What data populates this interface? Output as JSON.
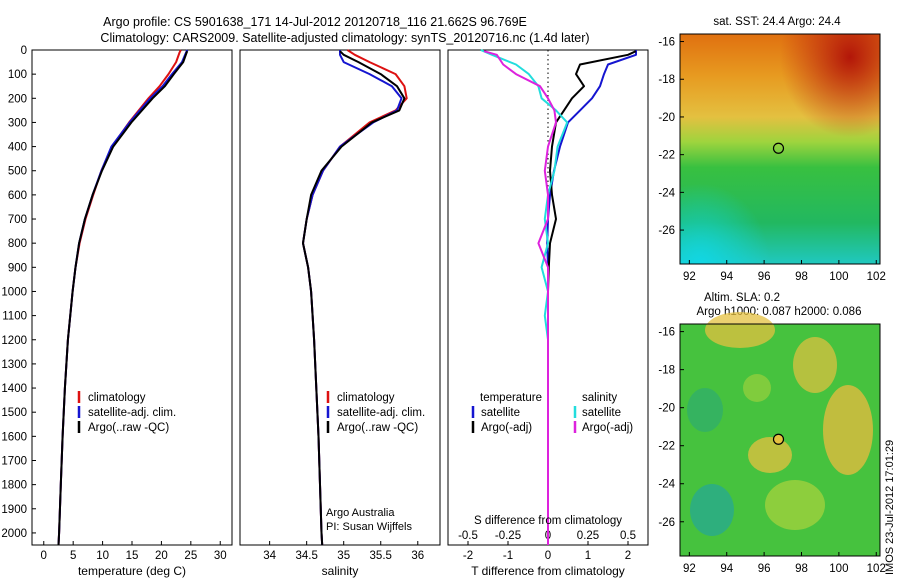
{
  "header": {
    "line1": "Argo profile: CS 5901638_171 14-Jul-2012 20120718_116 21.662S 96.769E",
    "line2": "Climatology: CARS2009. Satellite-adjusted climatology: synTS_20120716.nc (1.4d later)"
  },
  "timestamp": "IMOS 23-Jul-2012 17:01:29",
  "credit": {
    "line1": "Argo Australia",
    "line2": "PI: Susan Wijffels"
  },
  "colors": {
    "climatology": "#dd1111",
    "satellite": "#1515d0",
    "argo": "#000000",
    "sal_satellite": "#22dddd",
    "sal_argo": "#dd22dd"
  },
  "chart_data": [
    {
      "type": "line",
      "xlabel": "temperature (deg C)",
      "ylim": [
        2050,
        0
      ],
      "xlim": [
        -2,
        32
      ],
      "yticks": [
        0,
        100,
        200,
        300,
        400,
        500,
        600,
        700,
        800,
        900,
        1000,
        1100,
        1200,
        1300,
        1400,
        1500,
        1600,
        1700,
        1800,
        1900,
        2000
      ],
      "xticks": [
        0,
        5,
        10,
        15,
        20,
        25,
        30
      ],
      "legend": [
        "climatology",
        "satellite-adj. clim.",
        "Argo(..raw -QC)"
      ],
      "series": [
        {
          "name": "climatology",
          "color": "red",
          "depth": [
            0,
            10,
            50,
            100,
            150,
            200,
            300,
            400,
            500,
            600,
            700,
            800,
            900,
            1000,
            1200,
            1400,
            1600,
            1800,
            2000,
            2050
          ],
          "values": [
            23.3,
            23.1,
            22.5,
            21.2,
            19.7,
            17.8,
            14.5,
            11.6,
            9.8,
            8.4,
            7.1,
            6.1,
            5.4,
            4.9,
            4.1,
            3.6,
            3.2,
            2.9,
            2.6,
            2.5
          ]
        },
        {
          "name": "satellite-adj. clim.",
          "color": "blue",
          "depth": [
            0,
            10,
            50,
            100,
            150,
            200,
            300,
            400,
            500,
            600,
            700,
            800,
            900,
            1000,
            1200,
            1400,
            1600,
            1800,
            2000,
            2050
          ],
          "values": [
            24.4,
            24.2,
            23.5,
            21.8,
            20.2,
            18.1,
            14.6,
            11.5,
            9.8,
            8.3,
            7.0,
            6.0,
            5.4,
            4.9,
            4.1,
            3.6,
            3.2,
            2.9,
            2.6,
            2.5
          ]
        },
        {
          "name": "Argo(..raw -QC)",
          "color": "black",
          "depth": [
            5,
            10,
            50,
            100,
            150,
            200,
            300,
            400,
            500,
            600,
            700,
            800,
            900,
            1000,
            1200,
            1400,
            1600,
            1800,
            2000,
            2050
          ],
          "values": [
            24.4,
            24.3,
            23.7,
            22.1,
            20.6,
            18.5,
            14.9,
            11.8,
            9.9,
            8.3,
            7.0,
            6.0,
            5.4,
            4.9,
            4.1,
            3.6,
            3.2,
            2.9,
            2.6,
            2.5
          ]
        }
      ]
    },
    {
      "type": "line",
      "xlabel": "salinity",
      "ylim": [
        2050,
        0
      ],
      "xlim": [
        33.6,
        36.3
      ],
      "xticks": [
        34,
        34.5,
        35,
        35.5,
        36
      ],
      "legend": [
        "climatology",
        "satellite-adj. clim.",
        "Argo(..raw -QC)"
      ],
      "series": [
        {
          "name": "climatology",
          "color": "red",
          "depth": [
            0,
            20,
            50,
            100,
            150,
            200,
            250,
            300,
            400,
            500,
            600,
            700,
            800,
            900,
            1000,
            1200,
            1400,
            1600,
            1800,
            2000,
            2050
          ],
          "values": [
            35.05,
            35.15,
            35.35,
            35.7,
            35.82,
            35.85,
            35.7,
            35.35,
            34.95,
            34.72,
            34.58,
            34.5,
            34.45,
            34.52,
            34.56,
            34.6,
            34.63,
            34.66,
            34.68,
            34.7,
            34.71
          ]
        },
        {
          "name": "satellite-adj. clim.",
          "color": "blue",
          "depth": [
            0,
            20,
            50,
            100,
            150,
            200,
            250,
            300,
            400,
            500,
            600,
            700,
            800,
            900,
            1000,
            1200,
            1400,
            1600,
            1800,
            2000,
            2050
          ],
          "values": [
            34.95,
            34.95,
            35.0,
            35.35,
            35.65,
            35.78,
            35.72,
            35.4,
            34.95,
            34.72,
            34.58,
            34.5,
            34.45,
            34.52,
            34.56,
            34.6,
            34.63,
            34.66,
            34.68,
            34.7,
            34.71
          ]
        },
        {
          "name": "Argo(..raw -QC)",
          "color": "black",
          "depth": [
            5,
            20,
            50,
            100,
            150,
            200,
            250,
            300,
            400,
            500,
            600,
            700,
            800,
            900,
            1000,
            1200,
            1400,
            1600,
            1800,
            2000,
            2050
          ],
          "values": [
            34.95,
            35.0,
            35.2,
            35.5,
            35.72,
            35.82,
            35.75,
            35.38,
            34.97,
            34.7,
            34.56,
            34.5,
            34.45,
            34.52,
            34.56,
            34.6,
            34.63,
            34.66,
            34.68,
            34.7,
            34.71
          ]
        }
      ]
    },
    {
      "type": "line",
      "xlabel": "T difference from climatology",
      "x2label": "S difference from climatology",
      "ylim": [
        2050,
        0
      ],
      "xlim": [
        -2.5,
        2.5
      ],
      "xticks": [
        -2,
        -1,
        0,
        1,
        2
      ],
      "x2ticks": [
        "-0.5",
        "-0.25",
        "0",
        "0.25",
        "0.5"
      ],
      "legend_temperature": {
        "title": "temperature",
        "items": [
          "satellite",
          "Argo(-adj)"
        ]
      },
      "legend_salinity": {
        "title": "salinity",
        "items": [
          "satellite",
          "Argo(-adj)"
        ]
      },
      "series": [
        {
          "name": "temperature satellite",
          "color": "blue",
          "depth": [
            0,
            20,
            60,
            100,
            150,
            200,
            250,
            300,
            350,
            400,
            500,
            600,
            700,
            800,
            900,
            1000,
            1200,
            1400,
            1600,
            1800,
            2000,
            2050
          ],
          "values": [
            2.2,
            2.2,
            1.5,
            1.4,
            1.3,
            1.1,
            0.8,
            0.5,
            0.4,
            0.3,
            0.15,
            0.05,
            0.0,
            -0.02,
            0.0,
            0.0,
            0.0,
            0.0,
            0.0,
            0.0,
            0.0,
            0.0
          ]
        },
        {
          "name": "temperature Argo(-adj)",
          "color": "black",
          "depth": [
            5,
            20,
            60,
            100,
            150,
            200,
            250,
            300,
            350,
            400,
            500,
            600,
            700,
            800,
            900,
            1000,
            1200,
            1400,
            1600,
            1800,
            2000,
            2050
          ],
          "values": [
            2.2,
            2.0,
            0.8,
            0.7,
            0.9,
            0.6,
            0.4,
            0.2,
            0.15,
            0.1,
            0.05,
            0.1,
            0.2,
            0.05,
            0.02,
            0.0,
            0.0,
            0.0,
            0.0,
            0.0,
            0.0,
            0.0
          ]
        },
        {
          "name": "salinity satellite",
          "color": "cyan",
          "depth": [
            0,
            20,
            60,
            100,
            150,
            200,
            250,
            300,
            400,
            500,
            600,
            700,
            800,
            900,
            1000,
            1100,
            1200,
            1400,
            1600,
            1800,
            2000,
            2050
          ],
          "values": [
            -0.42,
            -0.35,
            -0.2,
            -0.12,
            -0.06,
            -0.04,
            0.05,
            0.12,
            0.06,
            0.04,
            0.0,
            -0.02,
            0.0,
            -0.04,
            0.0,
            -0.02,
            0.0,
            0.0,
            0.0,
            0.0,
            0.0,
            0.0
          ]
        },
        {
          "name": "salinity Argo(-adj)",
          "color": "magenta",
          "depth": [
            5,
            20,
            60,
            100,
            150,
            200,
            250,
            300,
            400,
            500,
            600,
            700,
            800,
            900,
            1000,
            1200,
            1400,
            1600,
            1800,
            2000,
            2050
          ],
          "values": [
            -0.4,
            -0.32,
            -0.28,
            -0.2,
            -0.05,
            0.0,
            0.04,
            0.05,
            0.0,
            -0.02,
            0.0,
            0.0,
            -0.06,
            0.0,
            0.0,
            0.0,
            0.0,
            0.0,
            0.0,
            0.0,
            0.0
          ]
        }
      ]
    },
    {
      "type": "heatmap",
      "title": "sat. SST: 24.4  Argo: 24.4",
      "xlim": [
        91.5,
        102.2
      ],
      "ylim": [
        -27.8,
        -15.6
      ],
      "xticks": [
        92,
        94,
        96,
        98,
        100,
        102
      ],
      "yticks": [
        -16,
        -18,
        -20,
        -22,
        -24,
        -26
      ],
      "marker": {
        "lon": 96.769,
        "lat": -21.662
      }
    },
    {
      "type": "heatmap",
      "title_line1": "Altim. SLA: 0.2",
      "title_line2": "Argo h1000: 0.087 h2000: 0.086",
      "xlim": [
        91.5,
        102.2
      ],
      "ylim": [
        -27.8,
        -15.6
      ],
      "xticks": [
        92,
        94,
        96,
        98,
        100,
        102
      ],
      "yticks": [
        -16,
        -18,
        -20,
        -22,
        -24,
        -26
      ],
      "marker": {
        "lon": 96.769,
        "lat": -21.662
      }
    }
  ]
}
